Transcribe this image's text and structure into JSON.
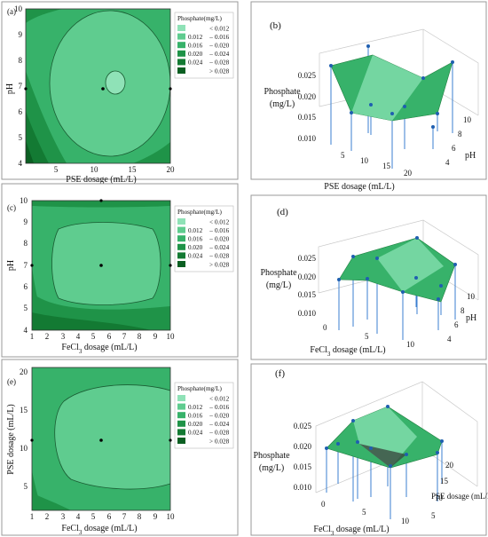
{
  "figure": {
    "panel_labels": [
      "(a)",
      "(b)",
      "(c)",
      "(d)",
      "(e)",
      "(f)"
    ]
  },
  "legend": {
    "title": "Phosphate(mg/L)",
    "rows": [
      {
        "a": "",
        "b": "<",
        "c": "0.012",
        "color": "#8fe2b7"
      },
      {
        "a": "0.012",
        "b": "–",
        "c": "0.016",
        "color": "#5fcc8f"
      },
      {
        "a": "0.016",
        "b": "–",
        "c": "0.020",
        "color": "#37b26a"
      },
      {
        "a": "0.020",
        "b": "–",
        "c": "0.024",
        "color": "#1f9348"
      },
      {
        "a": "0.024",
        "b": "–",
        "c": "0.028",
        "color": "#137a33"
      },
      {
        "a": "",
        "b": ">",
        "c": "0.028",
        "color": "#0b5f22"
      }
    ]
  },
  "colors": {
    "frame": "#9a9a9a",
    "surface_dark": "#1f8f49",
    "surface_light": "#9de8be",
    "stem": "#3b7fd0",
    "marker": "#1f5fb0"
  },
  "chart_data": [
    {
      "type": "contour",
      "panel": "(a)",
      "xlabel": "PSE dosage (mL/L)",
      "ylabel": "pH",
      "xticks": [
        "5",
        "10",
        "15",
        "20"
      ],
      "yticks": [
        "4",
        "5",
        "6",
        "7",
        "8",
        "9",
        "10"
      ],
      "xlim": [
        1,
        20
      ],
      "ylim": [
        4,
        10
      ],
      "levels": [
        0.012,
        0.016,
        0.02,
        0.024,
        0.028
      ],
      "center_points": [
        [
          11,
          7
        ]
      ],
      "edge_points": [
        [
          1,
          7
        ],
        [
          20,
          7
        ],
        [
          11,
          4
        ],
        [
          11,
          10
        ]
      ]
    },
    {
      "type": "surface3d",
      "panel": "(b)",
      "xlabel": "PSE dosage (mL/L)",
      "ylabel": "pH",
      "zlabel": "Phosphate (mg/L)",
      "xticks": [
        "5",
        "10",
        "15",
        "20"
      ],
      "yticks": [
        "4",
        "6",
        "8",
        "10"
      ],
      "zticks": [
        "0.010",
        "0.015",
        "0.020",
        "0.025"
      ]
    },
    {
      "type": "contour",
      "panel": "(c)",
      "xlabel": "FeCl3 dosage (mL/L)",
      "ylabel": "pH",
      "xticks": [
        "1",
        "2",
        "3",
        "4",
        "5",
        "6",
        "7",
        "8",
        "9",
        "10"
      ],
      "yticks": [
        "4",
        "5",
        "6",
        "7",
        "8",
        "9",
        "10"
      ],
      "xlim": [
        1,
        10
      ],
      "ylim": [
        4,
        10
      ],
      "levels": [
        0.012,
        0.016,
        0.02,
        0.024,
        0.028
      ],
      "center_points": [
        [
          5.5,
          7
        ]
      ],
      "edge_points": [
        [
          1,
          7
        ],
        [
          10,
          7
        ],
        [
          5.5,
          4
        ],
        [
          5.5,
          10
        ]
      ]
    },
    {
      "type": "surface3d",
      "panel": "(d)",
      "xlabel": "FeCl3 dosage (mL/L)",
      "ylabel": "pH",
      "zlabel": "Phosphate (mg/L)",
      "xticks": [
        "0",
        "5",
        "10"
      ],
      "yticks": [
        "4",
        "6",
        "8",
        "10"
      ],
      "zticks": [
        "0.010",
        "0.015",
        "0.020",
        "0.025"
      ]
    },
    {
      "type": "contour",
      "panel": "(e)",
      "xlabel": "FeCl3 dosage (mL/L)",
      "ylabel": "PSE dosage (mL/L)",
      "xticks": [
        "1",
        "2",
        "3",
        "4",
        "5",
        "6",
        "7",
        "8",
        "9",
        "10"
      ],
      "yticks": [
        "5",
        "10",
        "15",
        "20"
      ],
      "xlim": [
        1,
        10
      ],
      "ylim": [
        1,
        20
      ],
      "levels": [
        0.012,
        0.016,
        0.02,
        0.024,
        0.028
      ],
      "center_points": [
        [
          5.5,
          11
        ]
      ],
      "edge_points": [
        [
          1,
          11
        ],
        [
          10,
          11
        ],
        [
          5.5,
          1
        ],
        [
          5.5,
          20
        ]
      ]
    },
    {
      "type": "surface3d",
      "panel": "(f)",
      "xlabel": "FeCl3 dosage (mL/L)",
      "ylabel": "PSE dosage (mL/L)",
      "zlabel": "Phosphate (mg/L)",
      "xticks": [
        "0",
        "5",
        "10"
      ],
      "yticks": [
        "5",
        "10",
        "15",
        "20"
      ],
      "zticks": [
        "0.010",
        "0.015",
        "0.020",
        "0.025"
      ]
    }
  ]
}
